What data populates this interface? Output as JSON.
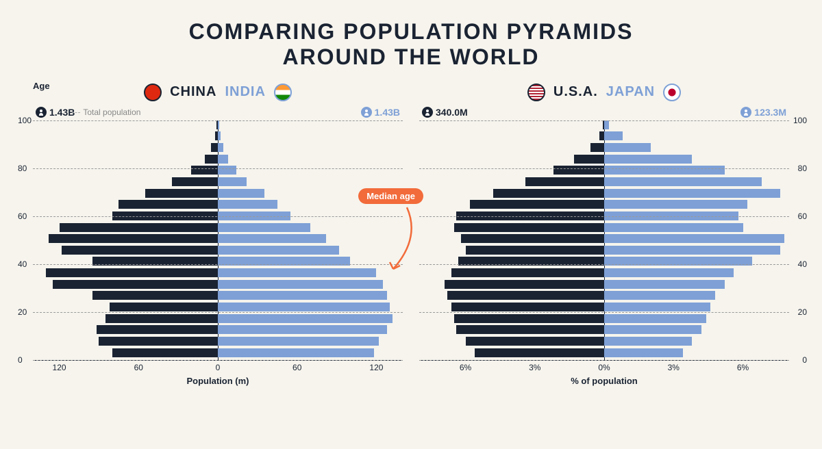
{
  "title_line1": "COMPARING POPULATION PYRAMIDS",
  "title_line2": "AROUND THE WORLD",
  "colors": {
    "dark": "#1a2332",
    "light": "#7ea0d6",
    "bg": "#f6f4ed",
    "badge": "#f26b3a",
    "grid": "#999999"
  },
  "age_axis_label": "Age",
  "total_pop_label": "Total population",
  "median_label": "Median age",
  "chart1": {
    "left_country": "CHINA",
    "right_country": "INDIA",
    "left_flag_bg": "#de2910",
    "right_flag_bg": "linear-gradient(to bottom, #ff9933 33%, #ffffff 33% 66%, #138808 66%)",
    "left_pop": "1.43B",
    "right_pop": "1.43B",
    "x_label": "Population (m)",
    "x_max": 140,
    "x_ticks_left": [
      120,
      60,
      0
    ],
    "x_ticks_right": [
      60,
      120
    ],
    "y_ticks": [
      0,
      20,
      40,
      60,
      80,
      100
    ],
    "y_tick_side": "left",
    "age_groups": [
      "0-4",
      "5-9",
      "10-14",
      "15-19",
      "20-24",
      "25-29",
      "30-34",
      "35-39",
      "40-44",
      "45-49",
      "50-54",
      "55-59",
      "60-64",
      "65-69",
      "70-74",
      "75-79",
      "80-84",
      "85-89",
      "90-94",
      "95-99",
      "100+"
    ],
    "left_values": [
      80,
      90,
      92,
      85,
      82,
      95,
      125,
      130,
      95,
      118,
      128,
      120,
      80,
      75,
      55,
      35,
      20,
      10,
      5,
      2,
      1
    ],
    "right_values": [
      118,
      122,
      128,
      132,
      130,
      128,
      125,
      120,
      100,
      92,
      82,
      70,
      55,
      45,
      35,
      22,
      14,
      8,
      4,
      2,
      1
    ]
  },
  "chart2": {
    "left_country": "U.S.A.",
    "right_country": "JAPAN",
    "left_flag_bg": "repeating-linear-gradient(#b22234 0 2px, #fff 2px 4px)",
    "right_flag_bg": "radial-gradient(circle, #bc002d 35%, #fff 36%)",
    "left_pop": "340.0M",
    "right_pop": "123.3M",
    "x_label": "% of population",
    "x_max": 8,
    "x_ticks_left": [
      "6%",
      "3%",
      "0%"
    ],
    "x_ticks_right": [
      "3%",
      "6%"
    ],
    "y_ticks": [
      0,
      20,
      40,
      60,
      80,
      100
    ],
    "y_tick_side": "right",
    "age_groups": [
      "0-4",
      "5-9",
      "10-14",
      "15-19",
      "20-24",
      "25-29",
      "30-34",
      "35-39",
      "40-44",
      "45-49",
      "50-54",
      "55-59",
      "60-64",
      "65-69",
      "70-74",
      "75-79",
      "80-84",
      "85-89",
      "90-94",
      "95-99",
      "100+"
    ],
    "left_values": [
      5.6,
      6.0,
      6.4,
      6.5,
      6.6,
      6.8,
      6.9,
      6.6,
      6.3,
      6.0,
      6.2,
      6.5,
      6.4,
      5.8,
      4.8,
      3.4,
      2.2,
      1.3,
      0.6,
      0.2,
      0.05
    ],
    "right_values": [
      3.4,
      3.8,
      4.2,
      4.4,
      4.6,
      4.8,
      5.2,
      5.6,
      6.4,
      7.6,
      7.8,
      6.0,
      5.8,
      6.2,
      7.6,
      6.8,
      5.2,
      3.8,
      2.0,
      0.8,
      0.2
    ]
  }
}
